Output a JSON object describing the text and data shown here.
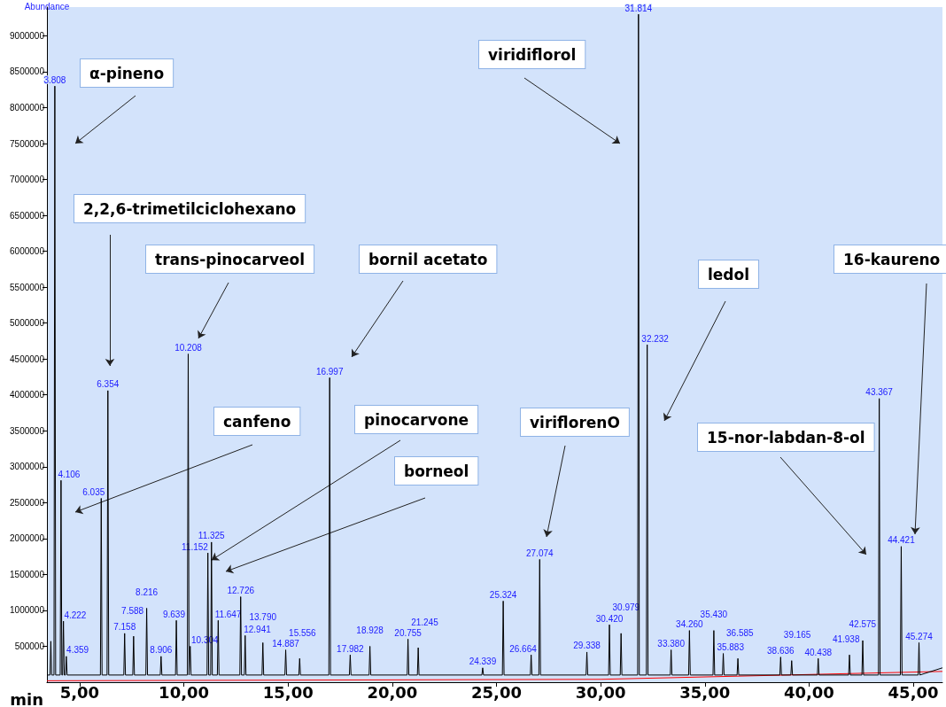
{
  "chart_data": {
    "type": "line",
    "xlabel": "min",
    "ylabel": "Abundance",
    "xlim": [
      3.43,
      46.4
    ],
    "ylim": [
      0,
      9400000
    ],
    "xticks": [
      {
        "value": 5,
        "label": "5,00"
      },
      {
        "value": 10,
        "label": "10,00"
      },
      {
        "value": 15,
        "label": "15,00"
      },
      {
        "value": 20,
        "label": "20,00"
      },
      {
        "value": 25,
        "label": "25,00"
      },
      {
        "value": 30,
        "label": "30,00"
      },
      {
        "value": 35,
        "label": "35,00"
      },
      {
        "value": 40,
        "label": "40,00"
      },
      {
        "value": 45,
        "label": "45,00"
      }
    ],
    "yticks": [
      500000,
      1000000,
      1500000,
      2000000,
      2500000,
      3000000,
      3500000,
      4000000,
      4500000,
      5000000,
      5500000,
      6000000,
      6500000,
      7000000,
      7500000,
      8000000,
      8500000,
      9000000
    ],
    "grid": false,
    "series": [
      {
        "color": "#000000",
        "x": [
          3.43,
          3.577,
          3.617,
          3.657,
          3.768,
          3.808,
          3.848,
          4.066,
          4.106,
          4.146,
          4.182,
          4.222,
          4.262,
          4.319,
          4.359,
          4.399,
          5.995,
          6.035,
          6.075,
          6.314,
          6.354,
          6.394,
          7.118,
          7.158,
          7.198,
          7.548,
          7.588,
          7.628,
          8.176,
          8.216,
          8.256,
          8.866,
          8.906,
          8.946,
          9.599,
          9.639,
          9.679,
          10.168,
          10.208,
          10.248,
          10.264,
          10.304,
          10.344,
          11.112,
          11.152,
          11.192,
          11.285,
          11.325,
          11.365,
          11.607,
          11.647,
          11.687,
          12.686,
          12.726,
          12.766,
          12.901,
          12.941,
          12.981,
          13.75,
          13.79,
          13.83,
          14.847,
          14.887,
          14.927,
          15.516,
          15.556,
          15.596,
          16.957,
          16.997,
          17.037,
          17.942,
          17.982,
          18.022,
          18.888,
          18.928,
          18.968,
          20.715,
          20.755,
          20.795,
          21.205,
          21.245,
          21.285,
          24.299,
          24.339,
          24.379,
          25.284,
          25.324,
          25.364,
          26.624,
          26.664,
          26.704,
          27.034,
          27.074,
          27.114,
          29.298,
          29.338,
          29.378,
          30.38,
          30.42,
          30.46,
          30.939,
          30.979,
          31.019,
          31.774,
          31.814,
          31.854,
          32.192,
          32.232,
          32.272,
          33.34,
          33.38,
          33.42,
          34.22,
          34.26,
          34.3,
          35.39,
          35.43,
          35.47,
          35.843,
          35.883,
          35.923,
          36.545,
          36.585,
          36.625,
          38.596,
          38.636,
          38.676,
          39.125,
          39.165,
          39.205,
          40.398,
          40.438,
          40.478,
          41.898,
          41.938,
          41.978,
          42.535,
          42.575,
          42.615,
          43.327,
          43.367,
          43.407,
          44.381,
          44.421,
          44.461,
          45.234,
          45.274,
          45.314,
          46.4
        ],
        "values": [
          100000,
          100000,
          570000,
          100000,
          100000,
          8300000,
          100000,
          100000,
          2810000,
          100000,
          100000,
          850000,
          100000,
          100000,
          360000,
          100000,
          100000,
          2560000,
          100000,
          100000,
          4060000,
          100000,
          100000,
          680000,
          100000,
          100000,
          640000,
          100000,
          100000,
          1030000,
          100000,
          100000,
          360000,
          100000,
          100000,
          860000,
          100000,
          100000,
          4570000,
          100000,
          100000,
          500000,
          100000,
          100000,
          1800000,
          100000,
          100000,
          1950000,
          100000,
          100000,
          860000,
          100000,
          100000,
          1190000,
          100000,
          100000,
          650000,
          100000,
          100000,
          550000,
          100000,
          100000,
          450000,
          100000,
          100000,
          330000,
          100000,
          100000,
          4240000,
          100000,
          100000,
          380000,
          100000,
          100000,
          500000,
          100000,
          100000,
          600000,
          100000,
          100000,
          480000,
          100000,
          100000,
          200000,
          100000,
          100000,
          1130000,
          100000,
          100000,
          380000,
          100000,
          100000,
          1710000,
          100000,
          100000,
          420000,
          100000,
          100000,
          800000,
          100000,
          100000,
          680000,
          100000,
          100000,
          9300000,
          100000,
          100000,
          4700000,
          100000,
          100000,
          450000,
          100000,
          100000,
          720000,
          100000,
          100000,
          720000,
          100000,
          100000,
          400000,
          100000,
          100000,
          330000,
          100000,
          100000,
          350000,
          100000,
          100000,
          300000,
          100000,
          100000,
          330000,
          100000,
          100000,
          380000,
          100000,
          100000,
          580000,
          100000,
          100000,
          3950000,
          100000,
          100000,
          1890000,
          100000,
          100000,
          550000,
          100000,
          200000
        ]
      },
      {
        "color": "#ff0000",
        "x": [
          3.43,
          30,
          46.4
        ],
        "values": [
          20000,
          40000,
          150000
        ]
      }
    ],
    "annotations": [
      "α-pineno",
      "2,2,6-trimetilciclohexano",
      "trans-pinocarveol",
      "canfeno",
      {
        "text": "pinocarvone",
        "x": 11.325,
        "y": 1700000
      },
      "borneol",
      "bornil acetato",
      "viridiflorol",
      "viriflorenO",
      "ledol",
      "16-kaureno",
      "15-nor-labdan-8-ol",
      {
        "text": "3.808",
        "x": 3.808,
        "y": 8300000
      },
      {
        "text": "4.106",
        "x": 4.106,
        "y": 2810000
      },
      {
        "text": "4.222",
        "x": 4.222,
        "y": 850000
      },
      {
        "text": "4.359",
        "x": 4.359,
        "y": 360000
      },
      {
        "text": "6.035",
        "x": 6.035,
        "y": 2560000
      },
      {
        "text": "6.354",
        "x": 6.354,
        "y": 4060000
      },
      {
        "text": "7.158",
        "x": 7.158,
        "y": 680000
      },
      {
        "text": "7.588",
        "x": 7.588,
        "y": 640000
      },
      {
        "text": "8.216",
        "x": 8.216,
        "y": 1030000
      },
      {
        "text": "8.906",
        "x": 8.906,
        "y": 360000
      },
      {
        "text": "9.639",
        "x": 9.639,
        "y": 860000
      },
      {
        "text": "10.208",
        "x": 10.208,
        "y": 4570000
      },
      {
        "text": "10.304",
        "x": 10.304,
        "y": 500000
      },
      {
        "text": "11.152",
        "x": 11.152,
        "y": 1800000
      },
      {
        "text": "11.325",
        "x": 11.325,
        "y": 1950000
      },
      {
        "text": "11.647",
        "x": 11.647,
        "y": 860000
      },
      {
        "text": "12.726",
        "x": 12.726,
        "y": 1190000
      },
      {
        "text": "12.941",
        "x": 12.941,
        "y": 650000
      },
      {
        "text": "13.790",
        "x": 13.79,
        "y": 550000
      },
      {
        "text": "14.887",
        "x": 14.887,
        "y": 450000
      },
      {
        "text": "15.556",
        "x": 15.556,
        "y": 330000
      },
      {
        "text": "16.997",
        "x": 16.997,
        "y": 4240000
      },
      {
        "text": "17.982",
        "x": 17.982,
        "y": 380000
      },
      {
        "text": "18.928",
        "x": 18.928,
        "y": 500000
      },
      {
        "text": "20.755",
        "x": 20.755,
        "y": 600000
      },
      {
        "text": "21.245",
        "x": 21.245,
        "y": 480000
      },
      {
        "text": "24.339",
        "x": 24.339,
        "y": 200000
      },
      {
        "text": "25.324",
        "x": 25.324,
        "y": 1130000
      },
      {
        "text": "26.664",
        "x": 26.664,
        "y": 380000
      },
      {
        "text": "27.074",
        "x": 27.074,
        "y": 1710000
      },
      {
        "text": "29.338",
        "x": 29.338,
        "y": 420000
      },
      {
        "text": "30.420",
        "x": 30.42,
        "y": 800000
      },
      {
        "text": "30.979",
        "x": 30.979,
        "y": 680000
      },
      {
        "text": "31.814",
        "x": 31.814,
        "y": 9300000
      },
      {
        "text": "32.232",
        "x": 32.232,
        "y": 4700000
      },
      {
        "text": "33.380",
        "x": 33.38,
        "y": 450000
      },
      {
        "text": "34.260",
        "x": 34.26,
        "y": 720000
      },
      {
        "text": "35.430",
        "x": 35.43,
        "y": 720000
      },
      {
        "text": "35.883",
        "x": 35.883,
        "y": 400000
      },
      {
        "text": "36.585",
        "x": 36.585,
        "y": 330000
      },
      {
        "text": "38.636",
        "x": 38.636,
        "y": 350000
      },
      {
        "text": "39.165",
        "x": 39.165,
        "y": 300000
      },
      {
        "text": "40.438",
        "x": 40.438,
        "y": 330000
      },
      {
        "text": "41.938",
        "x": 41.938,
        "y": 380000
      },
      {
        "text": "42.575",
        "x": 42.575,
        "y": 580000
      },
      {
        "text": "43.367",
        "x": 43.367,
        "y": 3950000
      },
      {
        "text": "44.421",
        "x": 44.421,
        "y": 1890000
      },
      {
        "text": "45.274",
        "x": 45.274,
        "y": 550000
      }
    ]
  }
}
